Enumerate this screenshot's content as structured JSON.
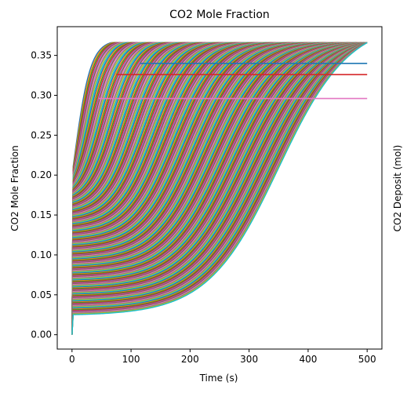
{
  "chart_data": {
    "type": "line",
    "title": "CO2 Mole Fraction",
    "xlabel": "Time (s)",
    "ylabel": "CO2 Mole Fraction",
    "ylabel_right": "CO2 Deposit (mol)",
    "xlim": [
      -25,
      525
    ],
    "ylim": [
      -0.018,
      0.386
    ],
    "x_ticks": [
      0,
      100,
      200,
      300,
      400,
      500
    ],
    "x_tick_labels": [
      "0",
      "100",
      "200",
      "300",
      "400",
      "500"
    ],
    "y_ticks": [
      0.0,
      0.05,
      0.1,
      0.15,
      0.2,
      0.25,
      0.3,
      0.35
    ],
    "y_tick_labels": [
      "0.00",
      "0.05",
      "0.10",
      "0.15",
      "0.20",
      "0.25",
      "0.30",
      "0.35"
    ],
    "grid": false,
    "legend": "none",
    "series_count": 200,
    "plateau_level": 0.366,
    "colors": [
      "#1f77b4",
      "#ff7f0e",
      "#2ca02c",
      "#d62728",
      "#9467bd",
      "#8c564b",
      "#e377c2",
      "#7f7f7f",
      "#bcbd22",
      "#17becf"
    ],
    "series_family": {
      "description_x": "Time from 0 to 500 s",
      "start_value": 0.0,
      "initial_jump_range": [
        0.025,
        0.2
      ],
      "final_value_range": [
        0.347,
        0.366
      ],
      "half_rise_time_range": [
        3,
        350
      ]
    },
    "plateau_series": [
      {
        "level": 0.34,
        "x_start": 115,
        "x_end": 500
      },
      {
        "level": 0.326,
        "x_start": 75,
        "x_end": 500
      },
      {
        "level": 0.296,
        "x_start": 45,
        "x_end": 500
      }
    ]
  }
}
